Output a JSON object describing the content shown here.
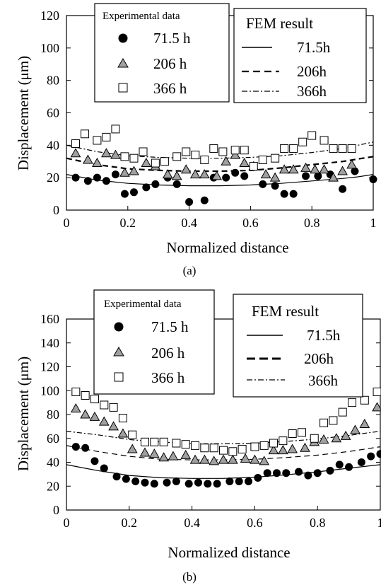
{
  "chart_data": [
    {
      "id": "a",
      "type": "scatter",
      "caption": "(a)",
      "xlabel": "Normalized distance",
      "ylabel": "Displacement (μm)",
      "xlim": [
        0,
        1
      ],
      "ylim": [
        0,
        120
      ],
      "xticks": [
        "0",
        "0.2",
        "0.4",
        "0.6",
        "0.8",
        "1"
      ],
      "yticks": [
        "0",
        "20",
        "40",
        "60",
        "80",
        "100",
        "120"
      ],
      "legend_experimental": {
        "title": "Experimental data",
        "entries": [
          {
            "marker": "filled-circle",
            "label": "71.5 h"
          },
          {
            "marker": "gray-triangle",
            "label": "206 h"
          },
          {
            "marker": "open-square",
            "label": "366 h"
          }
        ]
      },
      "legend_fem": {
        "title": "FEM result",
        "entries": [
          {
            "line": "solid",
            "label": "71.5h"
          },
          {
            "line": "dashed",
            "label": "206h"
          },
          {
            "line": "dash-dot",
            "label": "366h"
          }
        ]
      },
      "series": [
        {
          "name": "71.5 h",
          "kind": "experimental",
          "marker": "filled-circle",
          "x": [
            0.03,
            0.07,
            0.1,
            0.13,
            0.16,
            0.19,
            0.22,
            0.26,
            0.29,
            0.33,
            0.36,
            0.4,
            0.45,
            0.48,
            0.52,
            0.55,
            0.58,
            0.64,
            0.68,
            0.71,
            0.74,
            0.78,
            0.82,
            0.86,
            0.9,
            0.94,
            1.0
          ],
          "y": [
            20,
            18,
            20,
            18,
            22,
            10,
            11,
            14,
            16,
            20,
            16,
            5,
            6,
            20,
            20,
            23,
            21,
            16,
            15,
            10,
            10,
            21,
            21,
            22,
            13,
            24,
            19
          ]
        },
        {
          "name": "206 h",
          "kind": "experimental",
          "marker": "gray-triangle",
          "x": [
            0.03,
            0.07,
            0.1,
            0.13,
            0.16,
            0.19,
            0.22,
            0.26,
            0.29,
            0.33,
            0.36,
            0.39,
            0.42,
            0.45,
            0.49,
            0.52,
            0.55,
            0.58,
            0.61,
            0.65,
            0.68,
            0.71,
            0.74,
            0.78,
            0.81,
            0.84,
            0.87,
            0.9,
            0.93
          ],
          "y": [
            35,
            31,
            29,
            35,
            34,
            23,
            24,
            29,
            27,
            22,
            21,
            25,
            22,
            22,
            21,
            30,
            34,
            29,
            27,
            22,
            20,
            25,
            25,
            26,
            25,
            25,
            20,
            24,
            28
          ]
        },
        {
          "name": "366 h",
          "kind": "experimental",
          "marker": "open-square",
          "x": [
            0.03,
            0.06,
            0.1,
            0.13,
            0.16,
            0.19,
            0.22,
            0.25,
            0.29,
            0.32,
            0.36,
            0.39,
            0.42,
            0.45,
            0.48,
            0.51,
            0.55,
            0.58,
            0.61,
            0.64,
            0.68,
            0.71,
            0.74,
            0.77,
            0.8,
            0.84,
            0.87,
            0.9,
            0.93
          ],
          "y": [
            41,
            47,
            43,
            45,
            50,
            33,
            32,
            36,
            29,
            30,
            33,
            36,
            34,
            31,
            38,
            36,
            37,
            37,
            27,
            31,
            32,
            38,
            38,
            42,
            46,
            43,
            38,
            38,
            38
          ]
        },
        {
          "name": "71.5h",
          "kind": "fem",
          "line": "solid",
          "x": [
            0,
            0.1,
            0.2,
            0.3,
            0.4,
            0.5,
            0.6,
            0.7,
            0.8,
            0.9,
            0.95,
            1.0
          ],
          "y": [
            22,
            18.5,
            16.5,
            15.5,
            15,
            15,
            15.5,
            16.5,
            18,
            19.5,
            20.5,
            22
          ]
        },
        {
          "name": "206h",
          "kind": "fem",
          "line": "dashed",
          "x": [
            0,
            0.1,
            0.2,
            0.3,
            0.4,
            0.5,
            0.6,
            0.7,
            0.8,
            0.9,
            0.95,
            1.0
          ],
          "y": [
            32,
            28,
            25.5,
            24.5,
            24,
            24,
            24.5,
            26,
            28,
            30,
            31.5,
            33
          ]
        },
        {
          "name": "366h",
          "kind": "fem",
          "line": "dash-dot",
          "x": [
            0,
            0.1,
            0.2,
            0.3,
            0.4,
            0.5,
            0.6,
            0.7,
            0.8,
            0.9,
            0.95,
            1.0
          ],
          "y": [
            40,
            36,
            33.5,
            32.5,
            32,
            32,
            32.5,
            33.5,
            35.5,
            38,
            40,
            42
          ]
        }
      ]
    },
    {
      "id": "b",
      "type": "scatter",
      "caption": "(b)",
      "xlabel": "Normalized distance",
      "ylabel": "Displacement (μm)",
      "xlim": [
        0,
        1
      ],
      "ylim": [
        0,
        160
      ],
      "xticks": [
        "0",
        "0.2",
        "0.4",
        "0.6",
        "0.8",
        "1"
      ],
      "yticks": [
        "0",
        "20",
        "40",
        "60",
        "80",
        "100",
        "120",
        "140",
        "160"
      ],
      "legend_experimental": {
        "title": "Experimental data",
        "entries": [
          {
            "marker": "filled-circle",
            "label": "71.5 h"
          },
          {
            "marker": "gray-triangle",
            "label": "206 h"
          },
          {
            "marker": "open-square",
            "label": "366 h"
          }
        ]
      },
      "legend_fem": {
        "title": "FEM result",
        "entries": [
          {
            "line": "solid",
            "label": "71.5h"
          },
          {
            "line": "dashed",
            "label": "206h"
          },
          {
            "line": "dash-dot",
            "label": "366h"
          }
        ]
      },
      "series": [
        {
          "name": "71.5 h",
          "kind": "experimental",
          "marker": "filled-circle",
          "x": [
            0.03,
            0.06,
            0.09,
            0.12,
            0.16,
            0.19,
            0.22,
            0.25,
            0.28,
            0.32,
            0.35,
            0.39,
            0.42,
            0.45,
            0.48,
            0.52,
            0.55,
            0.58,
            0.61,
            0.64,
            0.67,
            0.7,
            0.74,
            0.77,
            0.8,
            0.84,
            0.87,
            0.9,
            0.94,
            0.97,
            1.0
          ],
          "y": [
            53,
            52,
            41,
            35,
            28,
            26,
            24,
            23,
            22,
            23,
            24,
            22,
            23,
            22,
            22,
            24,
            24,
            24,
            27,
            31,
            31,
            31,
            32,
            29,
            31,
            33,
            38,
            36,
            40,
            45,
            47
          ]
        },
        {
          "name": "206 h",
          "kind": "experimental",
          "marker": "gray-triangle",
          "x": [
            0.03,
            0.06,
            0.09,
            0.12,
            0.15,
            0.18,
            0.21,
            0.25,
            0.28,
            0.31,
            0.34,
            0.38,
            0.41,
            0.44,
            0.47,
            0.5,
            0.53,
            0.57,
            0.6,
            0.63,
            0.66,
            0.69,
            0.72,
            0.76,
            0.79,
            0.82,
            0.86,
            0.89,
            0.92,
            0.95,
            0.99
          ],
          "y": [
            85,
            80,
            78,
            74,
            70,
            64,
            51,
            48,
            47,
            44,
            45,
            46,
            42,
            42,
            41,
            42,
            42,
            43,
            42,
            41,
            50,
            50,
            51,
            52,
            57,
            59,
            60,
            62,
            67,
            72,
            86
          ]
        },
        {
          "name": "366 h",
          "kind": "experimental",
          "marker": "open-square",
          "x": [
            0.03,
            0.06,
            0.09,
            0.12,
            0.15,
            0.18,
            0.21,
            0.25,
            0.28,
            0.31,
            0.35,
            0.38,
            0.41,
            0.44,
            0.47,
            0.5,
            0.53,
            0.56,
            0.6,
            0.63,
            0.66,
            0.69,
            0.72,
            0.75,
            0.79,
            0.82,
            0.85,
            0.88,
            0.91,
            0.95,
            0.99
          ],
          "y": [
            99,
            96,
            93,
            88,
            86,
            77,
            63,
            57,
            57,
            57,
            56,
            55,
            54,
            52,
            52,
            50,
            49,
            51,
            53,
            54,
            56,
            58,
            64,
            65,
            60,
            73,
            75,
            82,
            90,
            92,
            99
          ]
        },
        {
          "name": "71.5h",
          "kind": "fem",
          "line": "solid",
          "x": [
            0,
            0.1,
            0.2,
            0.3,
            0.4,
            0.5,
            0.6,
            0.7,
            0.8,
            0.9,
            1.0
          ],
          "y": [
            38,
            33,
            29,
            27,
            26.5,
            26.5,
            27.5,
            29.5,
            32,
            35,
            38
          ]
        },
        {
          "name": "206h",
          "kind": "fem",
          "line": "dashed",
          "x": [
            0,
            0.1,
            0.2,
            0.3,
            0.4,
            0.5,
            0.6,
            0.7,
            0.8,
            0.9,
            1.0
          ],
          "y": [
            54,
            49,
            45,
            42.5,
            42,
            42,
            42.5,
            44,
            46,
            49,
            53
          ]
        },
        {
          "name": "366h",
          "kind": "fem",
          "line": "dash-dot",
          "x": [
            0,
            0.1,
            0.2,
            0.3,
            0.4,
            0.5,
            0.6,
            0.7,
            0.8,
            0.9,
            1.0
          ],
          "y": [
            66,
            63,
            59,
            57,
            55.5,
            55.5,
            56,
            57.5,
            59.5,
            62.5,
            66
          ]
        }
      ]
    }
  ]
}
